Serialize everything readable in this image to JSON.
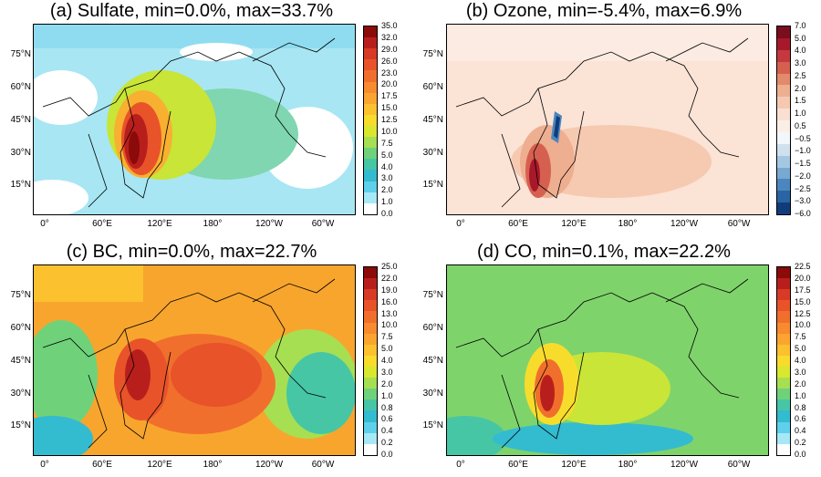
{
  "panels": [
    {
      "title": "(a) Sulfate, min=0.0%, max=33.7%",
      "lat_labels": [
        "75°N",
        "60°N",
        "45°N",
        "30°N",
        "15°N"
      ],
      "lon_labels": [
        "0°",
        "60°E",
        "120°E",
        "180°",
        "120°W",
        "60°W"
      ],
      "colorbar_labels": [
        "35.0",
        "32.0",
        "29.0",
        "26.0",
        "23.0",
        "20.0",
        "17.5",
        "15.0",
        "12.5",
        "10.0",
        "7.5",
        "5.0",
        "4.0",
        "3.0",
        "2.0",
        "1.0",
        "0.0"
      ],
      "colorbar_colors": [
        "#8b0a0a",
        "#b81f1c",
        "#d83a26",
        "#e8532a",
        "#f16f2c",
        "#f88a2f",
        "#fba530",
        "#fcc12e",
        "#f8dc2c",
        "#d9e82e",
        "#a7df52",
        "#6fd27a",
        "#46c6a5",
        "#33bbd0",
        "#5ed0ec",
        "#a6e8f6",
        "#ffffff"
      ],
      "background": "#a8e6f3"
    },
    {
      "title": "(b) Ozone, min=-5.4%, max=6.9%",
      "lat_labels": [
        "75°N",
        "60°N",
        "45°N",
        "30°N",
        "15°N"
      ],
      "lon_labels": [
        "0°",
        "60°E",
        "120°E",
        "180°",
        "120°W",
        "60°W"
      ],
      "colorbar_labels": [
        "7.0",
        "5.0",
        "4.0",
        "3.0",
        "2.5",
        "2.0",
        "1.5",
        "1.0",
        "0.5",
        "−0.5",
        "−1.0",
        "−1.5",
        "−2.0",
        "−2.5",
        "−3.0",
        "−6.0"
      ],
      "colorbar_colors": [
        "#7a0d1e",
        "#a8182b",
        "#c3393f",
        "#d6604f",
        "#e48a6c",
        "#eeae90",
        "#f5c9b1",
        "#fae0d2",
        "#fbeee7",
        "#f3f6fa",
        "#cfe0ee",
        "#a5c8e2",
        "#77a9d1",
        "#4b86be",
        "#2a64a4",
        "#103d7a"
      ],
      "background": "#fbe3d6"
    },
    {
      "title": "(c) BC, min=0.0%, max=22.7%",
      "lat_labels": [
        "75°N",
        "60°N",
        "45°N",
        "30°N",
        "15°N"
      ],
      "lon_labels": [
        "0°",
        "60°E",
        "120°E",
        "180°",
        "120°W",
        "60°W"
      ],
      "colorbar_labels": [
        "25.0",
        "22.0",
        "19.0",
        "16.0",
        "13.0",
        "10.0",
        "7.5",
        "5.0",
        "4.0",
        "3.0",
        "2.0",
        "1.0",
        "0.8",
        "0.6",
        "0.4",
        "0.2",
        "0.0"
      ],
      "colorbar_colors": [
        "#8b0a0a",
        "#b81f1c",
        "#d83a26",
        "#e8532a",
        "#f16f2c",
        "#f88a2f",
        "#fba530",
        "#fcc12e",
        "#f8dc2c",
        "#d9e82e",
        "#a7df52",
        "#6fd27a",
        "#46c6a5",
        "#33bbd0",
        "#5ed0ec",
        "#a6e8f6",
        "#ffffff"
      ],
      "background": "#f8a52e"
    },
    {
      "title": "(d) CO, min=0.1%, max=22.2%",
      "lat_labels": [
        "75°N",
        "60°N",
        "45°N",
        "30°N",
        "15°N"
      ],
      "lon_labels": [
        "0°",
        "60°E",
        "120°E",
        "180°",
        "120°W",
        "60°W"
      ],
      "colorbar_labels": [
        "22.5",
        "20.0",
        "17.5",
        "15.0",
        "12.5",
        "10.0",
        "7.5",
        "5.0",
        "4.0",
        "3.0",
        "2.0",
        "1.0",
        "0.8",
        "0.6",
        "0.4",
        "0.2",
        "0.0"
      ],
      "colorbar_colors": [
        "#8b0a0a",
        "#b81f1c",
        "#d83a26",
        "#e8532a",
        "#f16f2c",
        "#f88a2f",
        "#fba530",
        "#fcc12e",
        "#f8dc2c",
        "#d9e82e",
        "#a7df52",
        "#6fd27a",
        "#46c6a5",
        "#33bbd0",
        "#5ed0ec",
        "#a6e8f6",
        "#ffffff"
      ],
      "background": "#7fd36b"
    }
  ]
}
